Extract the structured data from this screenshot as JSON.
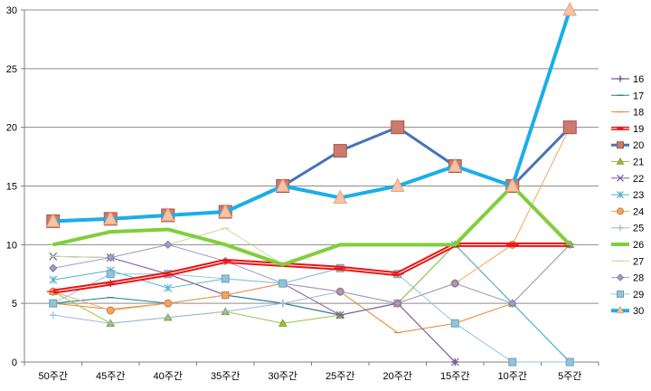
{
  "chart_data": {
    "type": "line",
    "title": "",
    "xlabel": "",
    "ylabel": "",
    "ylim": [
      0,
      30
    ],
    "yticks": [
      0,
      5,
      10,
      15,
      20,
      25,
      30
    ],
    "grid": "horizontal",
    "legend_placement": "right",
    "categories": [
      "50주간",
      "45주간",
      "40주간",
      "35주간",
      "30주간",
      "25주간",
      "20주간",
      "15주간",
      "10주간",
      "5주간"
    ],
    "series": [
      {
        "name": "16",
        "color": "#5b3a7a",
        "marker": "plus",
        "width": 1,
        "values": [
          6,
          6.7,
          7.5,
          5.7,
          5,
          4,
          5,
          0,
          null,
          null
        ]
      },
      {
        "name": "17",
        "color": "#1f7f8f",
        "marker": "dash",
        "width": 1,
        "values": [
          5,
          5.5,
          5,
          5.7,
          5,
          4,
          5,
          10,
          5,
          0
        ]
      },
      {
        "name": "18",
        "color": "#e8862a",
        "marker": "dash",
        "width": 1,
        "values": [
          5,
          4.5,
          5,
          5.7,
          6.7,
          6,
          2.5,
          3.3,
          5,
          10
        ]
      },
      {
        "name": "19",
        "color": "#ee1111",
        "marker": "dash",
        "width": 4,
        "values": [
          6,
          6.7,
          7.5,
          8.6,
          8.3,
          8,
          7.5,
          10,
          10,
          10
        ]
      },
      {
        "name": "20",
        "color": "#4573b8",
        "marker": "square",
        "width": 3,
        "values": [
          12,
          12.2,
          12.5,
          12.8,
          15,
          18,
          20,
          16.7,
          15,
          20
        ]
      },
      {
        "name": "21",
        "color": "#9bc53c",
        "marker": "triangle",
        "width": 1,
        "values": [
          6,
          3.3,
          3.8,
          4.3,
          3.3,
          4,
          5,
          10,
          5,
          10
        ]
      },
      {
        "name": "22",
        "color": "#7d5ba6",
        "marker": "x",
        "width": 1,
        "values": [
          9,
          8.9,
          7.5,
          5.7,
          6.7,
          4,
          5,
          0,
          null,
          null
        ]
      },
      {
        "name": "23",
        "color": "#4fb3cf",
        "marker": "star",
        "width": 1,
        "values": [
          7,
          7.8,
          6.3,
          7.1,
          6.7,
          8,
          7.5,
          10,
          5,
          0
        ]
      },
      {
        "name": "24",
        "color": "#f4a460",
        "marker": "circle",
        "width": 1,
        "values": [
          6,
          4.4,
          5,
          5.7,
          6.7,
          6,
          5,
          6.7,
          10,
          20
        ]
      },
      {
        "name": "25",
        "color": "#9fb8da",
        "marker": "plus",
        "width": 1,
        "values": [
          4,
          3.3,
          3.8,
          4.3,
          5,
          6,
          5,
          6.7,
          5,
          10
        ]
      },
      {
        "name": "26",
        "color": "#7fcf3a",
        "marker": "dash",
        "width": 4,
        "values": [
          10,
          11.1,
          11.3,
          10,
          8.3,
          10,
          10,
          10,
          15,
          10
        ]
      },
      {
        "name": "27",
        "color": "#c5d99a",
        "marker": "dash",
        "width": 1,
        "values": [
          9,
          8.9,
          10,
          11.4,
          8.3,
          10,
          10,
          10,
          15,
          10
        ]
      },
      {
        "name": "28",
        "color": "#a39cc9",
        "marker": "diamond",
        "width": 1,
        "values": [
          8,
          8.9,
          10,
          8.6,
          6.7,
          6,
          5,
          6.7,
          5,
          10
        ]
      },
      {
        "name": "29",
        "color": "#8ec5dd",
        "marker": "square",
        "width": 1,
        "values": [
          5,
          7.5,
          7.5,
          7.1,
          6.7,
          8,
          7.5,
          3.3,
          0,
          0
        ]
      },
      {
        "name": "30",
        "color": "#1aaee8",
        "marker": "triangle",
        "width": 4,
        "values": [
          12,
          12.2,
          12.5,
          12.8,
          15,
          14,
          15,
          16.7,
          15,
          30
        ]
      }
    ]
  }
}
